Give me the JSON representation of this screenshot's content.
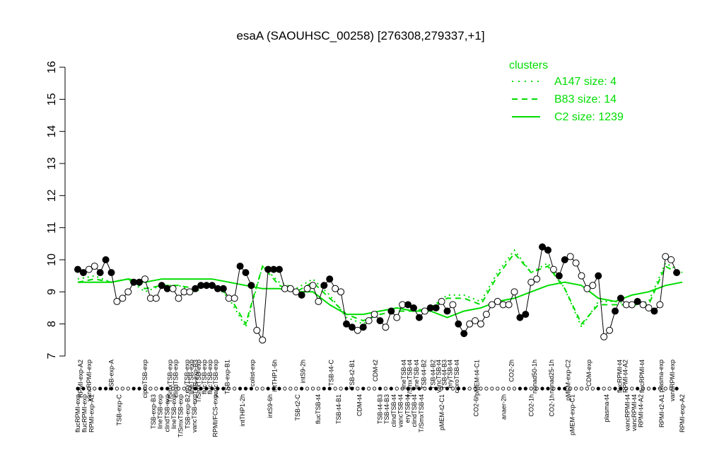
{
  "chart_data": {
    "type": "line",
    "title": "esaA (SAOUHSC_00258) [276308,279337,+1]",
    "xlabel": "",
    "ylabel": "",
    "ylim": [
      7,
      16
    ],
    "yticks": [
      7,
      8,
      9,
      10,
      11,
      12,
      13,
      14,
      15,
      16
    ],
    "legend": {
      "title": "clusters",
      "placement": "top-right",
      "color": "#00dd00",
      "entries": [
        {
          "label": "A147 size: 4",
          "style": "dotted"
        },
        {
          "label": "B83 size: 14",
          "style": "dashed"
        },
        {
          "label": "C2 size: 1239",
          "style": "solid"
        }
      ]
    },
    "x_labels_top": [
      {
        "x": 0.5,
        "text": "RPMI-exp-A2"
      },
      {
        "x": 2.0,
        "text": "vancRPMI-exp"
      },
      {
        "x": 6.0,
        "text": "TSB-exp-A"
      },
      {
        "x": 12.0,
        "text": "ciproTSB-exp"
      },
      {
        "x": 16.5,
        "text": "T/SmxTSB-exp"
      },
      {
        "x": 17.5,
        "text": "clindTSB-exp"
      },
      {
        "x": 19.5,
        "text": "eryTSB-exp"
      },
      {
        "x": 20.3,
        "text": "lineTSB-exp"
      },
      {
        "x": 21.0,
        "text": "TSB-exp-B3"
      },
      {
        "x": 21.6,
        "text": "T/SmxTSB-exp"
      },
      {
        "x": 22.6,
        "text": "flucTSB-exp"
      },
      {
        "x": 23.6,
        "text": "flucTSB-exp"
      },
      {
        "x": 24.6,
        "text": "vancTSB-exp"
      },
      {
        "x": 26.7,
        "text": "TSB-exp-B1"
      },
      {
        "x": 31.2,
        "text": "colist-exp"
      },
      {
        "x": 35.2,
        "text": "intTHP1-6h"
      },
      {
        "x": 40.2,
        "text": "intS9-2h"
      },
      {
        "x": 45.3,
        "text": "TSB-t4-C"
      },
      {
        "x": 49.0,
        "text": "TSB-t2-B1"
      },
      {
        "x": 53.2,
        "text": "CDM-t2"
      },
      {
        "x": 58.2,
        "text": "lineTSB-t4"
      },
      {
        "x": 59.3,
        "text": "T/SmxTSB-t4"
      },
      {
        "x": 60.5,
        "text": "lineTSB-t4"
      },
      {
        "x": 61.8,
        "text": "TSB-t4-B2"
      },
      {
        "x": 63.5,
        "text": "TSB-t4-B2"
      },
      {
        "x": 64.5,
        "text": "vancTSB-t4"
      },
      {
        "x": 65.5,
        "text": "TSB-t4-B3"
      },
      {
        "x": 66.5,
        "text": "eryTSB-t4"
      },
      {
        "x": 67.7,
        "text": "ciproTSB-t4"
      },
      {
        "x": 71.3,
        "text": "pMEM-t4-C1"
      },
      {
        "x": 77.5,
        "text": "CO2-2h"
      },
      {
        "x": 81.6,
        "text": "nonad50-1h"
      },
      {
        "x": 84.6,
        "text": "nonad25-1h"
      },
      {
        "x": 87.6,
        "text": "pMEM-exp-C2"
      },
      {
        "x": 91.3,
        "text": "CDM-exp"
      },
      {
        "x": 96.8,
        "text": "flucRPMI-t4"
      },
      {
        "x": 97.8,
        "text": "RPMI-t4-A2"
      },
      {
        "x": 100.8,
        "text": "flucRPMI-t4"
      },
      {
        "x": 104.2,
        "text": "plasma-exp"
      },
      {
        "x": 106.2,
        "text": "vancRPMI-exp"
      }
    ],
    "x_labels_bottom": [
      {
        "x": 0.0,
        "text": "flucRPMI-exp"
      },
      {
        "x": 1.0,
        "text": "flucRPMI-exp"
      },
      {
        "x": 2.0,
        "text": "RPMI-exp-A1"
      },
      {
        "x": 6.0,
        "text": "TSB-exp-C"
      },
      {
        "x": 11.0,
        "text": "TSB-exp-B3"
      },
      {
        "x": 12.0,
        "text": "lineTSB-exp"
      },
      {
        "x": 13.0,
        "text": "clindTSB-exp"
      },
      {
        "x": 14.0,
        "text": "lineTSB-exp"
      },
      {
        "x": 15.0,
        "text": "T/SmxTSB-exp"
      },
      {
        "x": 16.0,
        "text": "TSB-exp-B2"
      },
      {
        "x": 17.0,
        "text": "vancTSB-exp"
      },
      {
        "x": 20.0,
        "text": "RPMI/FCS-exp"
      },
      {
        "x": 24.0,
        "text": "intTHP1-2h"
      },
      {
        "x": 28.0,
        "text": "intS9-6h"
      },
      {
        "x": 32.0,
        "text": "TSB-t2-C"
      },
      {
        "x": 35.0,
        "text": "flucTSB-t4"
      },
      {
        "x": 38.0,
        "text": "TSB-t4-B1"
      },
      {
        "x": 41.0,
        "text": "CDM-t4"
      },
      {
        "x": 44.0,
        "text": "TSB-t4-B3"
      },
      {
        "x": 45.0,
        "text": "TSB-t4-B3"
      },
      {
        "x": 46.0,
        "text": "clindTSB-t4"
      },
      {
        "x": 47.0,
        "text": "vancTSB-t4"
      },
      {
        "x": 48.0,
        "text": "eryTSB-t4"
      },
      {
        "x": 49.0,
        "text": "clindTSB-t4"
      },
      {
        "x": 50.0,
        "text": "T/SmxTSB-t4"
      },
      {
        "x": 53.0,
        "text": "pMEM-t2-C1"
      },
      {
        "x": 58.0,
        "text": "CO2-6h"
      },
      {
        "x": 62.0,
        "text": "anaer-2h"
      },
      {
        "x": 66.0,
        "text": "CO2-1h"
      },
      {
        "x": 69.0,
        "text": "CO2-1h"
      },
      {
        "x": 72.0,
        "text": "pMEM-exp-C1"
      },
      {
        "x": 77.0,
        "text": "plasma-t4"
      },
      {
        "x": 80.0,
        "text": "vancRPMI-t4"
      },
      {
        "x": 81.0,
        "text": "vancRPMI-t4"
      },
      {
        "x": 82.0,
        "text": "RPMI-t4-A2"
      },
      {
        "x": 85.0,
        "text": "RPMI-t2-A1"
      },
      {
        "x": 88.0,
        "text": "RPMI-exp-A2"
      }
    ],
    "series": [
      {
        "name": "C2 size: 1239",
        "style": "solid",
        "x": [
          0,
          3,
          6,
          9,
          12,
          15,
          18,
          21,
          24,
          27,
          30,
          33,
          36,
          39,
          42,
          45,
          48,
          51,
          54,
          57,
          60,
          63,
          66,
          69,
          72,
          75,
          78,
          81,
          84,
          87,
          90,
          93,
          96,
          99,
          102,
          105,
          108
        ],
        "y": [
          9.3,
          9.3,
          9.3,
          9.4,
          9.3,
          9.4,
          9.4,
          9.4,
          9.4,
          9.3,
          9.2,
          9.1,
          9.1,
          9.0,
          9.0,
          8.6,
          8.3,
          8.3,
          8.4,
          8.5,
          8.4,
          8.4,
          8.2,
          8.4,
          8.5,
          8.7,
          8.8,
          9.0,
          9.2,
          9.3,
          9.2,
          8.8,
          8.7,
          8.9,
          9.0,
          9.2,
          9.3
        ]
      },
      {
        "name": "B83 size: 14",
        "style": "dashed",
        "x": [
          0,
          3,
          6,
          9,
          12,
          15,
          18,
          21,
          24,
          27,
          30,
          33,
          36,
          39,
          42,
          45,
          48,
          51,
          54,
          57,
          60,
          63,
          66,
          69,
          72,
          75,
          78,
          81,
          84,
          87,
          90,
          93,
          96,
          99,
          102,
          105,
          108
        ],
        "y": [
          9.3,
          9.4,
          9.3,
          9.4,
          9.1,
          9.2,
          9.2,
          9.1,
          9.2,
          8.9,
          8.0,
          9.8,
          9.2,
          9.0,
          9.3,
          8.8,
          8.3,
          8.1,
          8.3,
          8.4,
          8.4,
          8.5,
          8.8,
          8.8,
          8.6,
          9.5,
          10.2,
          9.6,
          9.8,
          9.1,
          8.0,
          8.6,
          8.6,
          8.6,
          8.6,
          9.8,
          9.5
        ]
      },
      {
        "name": "A147 size: 4",
        "style": "dotted",
        "x": [
          0,
          3,
          6,
          9,
          12,
          15,
          18,
          21,
          24,
          27,
          30,
          33,
          36,
          39,
          42,
          45,
          48,
          51,
          54,
          57,
          60,
          63,
          66,
          69,
          72,
          75,
          78,
          81,
          84,
          87,
          90,
          93,
          96,
          99,
          102,
          105,
          108
        ],
        "y": [
          9.4,
          9.5,
          9.3,
          9.4,
          9.0,
          9.2,
          9.2,
          9.0,
          9.3,
          8.8,
          7.9,
          9.8,
          9.3,
          9.1,
          9.4,
          8.9,
          8.2,
          8.0,
          8.4,
          8.5,
          8.4,
          8.5,
          8.9,
          8.9,
          8.7,
          9.6,
          10.3,
          9.6,
          9.9,
          9.1,
          7.9,
          8.7,
          8.7,
          8.6,
          8.7,
          9.9,
          9.6
        ]
      },
      {
        "name": "",
        "style": "points",
        "x": [
          0,
          1,
          2,
          3,
          4,
          5,
          6,
          7,
          8,
          9,
          10,
          11,
          12,
          13,
          14,
          15,
          16,
          17,
          18,
          19,
          20,
          21,
          22,
          23,
          24,
          25,
          26,
          27,
          28,
          29,
          30,
          31,
          32,
          33,
          34,
          35,
          36,
          37,
          38,
          39,
          40,
          41,
          42,
          43,
          44,
          45,
          46,
          47,
          48,
          49,
          50,
          51,
          52,
          53,
          54,
          55,
          56,
          57,
          58,
          59,
          60,
          61,
          62,
          63,
          64,
          65,
          66,
          67,
          68,
          69,
          70,
          71,
          72,
          73,
          74,
          75,
          76,
          77,
          78,
          79,
          80,
          81,
          82,
          83,
          84,
          85,
          86,
          87,
          88,
          89,
          90,
          91,
          92,
          93,
          94,
          95,
          96,
          97,
          98,
          99,
          100,
          101,
          102,
          103,
          104,
          105,
          106,
          107
        ],
        "y": [
          9.7,
          9.6,
          9.7,
          9.8,
          9.6,
          10.0,
          9.6,
          8.7,
          8.8,
          9.0,
          9.3,
          9.3,
          9.4,
          8.8,
          8.8,
          9.2,
          9.1,
          9.1,
          8.8,
          9.0,
          9.0,
          9.1,
          9.2,
          9.2,
          9.2,
          9.1,
          9.1,
          8.8,
          8.8,
          9.8,
          9.6,
          9.2,
          7.8,
          7.5,
          9.7,
          9.7,
          9.7,
          9.1,
          9.1,
          9.0,
          8.9,
          9.1,
          9.2,
          8.7,
          9.2,
          9.4,
          9.1,
          9.0,
          8.0,
          7.9,
          7.8,
          7.9,
          8.1,
          8.3,
          8.1,
          7.9,
          8.4,
          8.2,
          8.6,
          8.6,
          8.5,
          8.2,
          8.4,
          8.5,
          8.5,
          8.7,
          8.4,
          8.6,
          8.0,
          7.7,
          8.0,
          8.1,
          8.0,
          8.3,
          8.6,
          8.7,
          8.6,
          8.6,
          9.0,
          8.2,
          8.3,
          9.3,
          9.4,
          10.4,
          10.3,
          9.7,
          9.5,
          10.0,
          10.1,
          9.9,
          9.5,
          9.1,
          9.2,
          9.5,
          7.6,
          7.8,
          8.4,
          8.8,
          8.6,
          8.6,
          8.7,
          8.6,
          8.5,
          8.4,
          8.6,
          10.1,
          10.0,
          9.6
        ]
      }
    ],
    "point_fills": [
      1,
      1,
      0,
      0,
      1,
      1,
      1,
      0,
      0,
      0,
      1,
      1,
      0,
      0,
      0,
      1,
      1,
      0,
      0,
      0,
      0,
      1,
      1,
      1,
      1,
      1,
      1,
      0,
      0,
      1,
      1,
      1,
      0,
      0,
      1,
      1,
      1,
      0,
      0,
      0,
      1,
      0,
      0,
      0,
      1,
      1,
      0,
      0,
      1,
      1,
      0,
      1,
      0,
      0,
      1,
      0,
      1,
      0,
      0,
      1,
      1,
      1,
      0,
      1,
      1,
      0,
      1,
      0,
      1,
      1,
      0,
      0,
      0,
      0,
      0,
      0,
      0,
      0,
      0,
      1,
      1,
      0,
      0,
      1,
      1,
      0,
      1,
      1,
      0,
      0,
      0,
      0,
      0,
      1,
      0,
      0,
      1,
      1,
      0,
      0,
      1,
      0,
      0,
      1,
      0,
      0,
      0,
      1
    ],
    "grid": false
  }
}
